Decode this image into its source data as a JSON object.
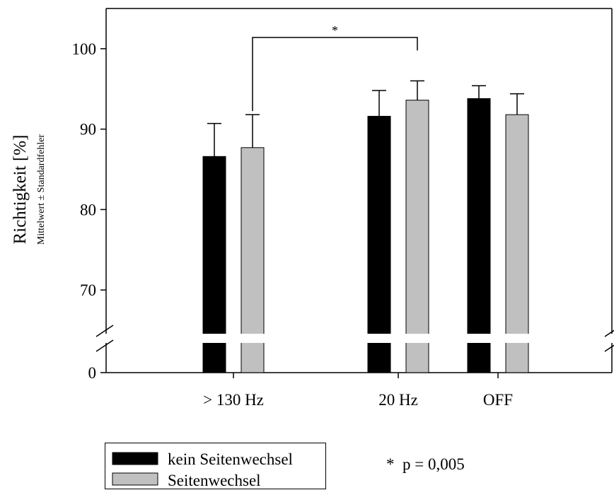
{
  "chart_data": {
    "type": "bar",
    "ylabel": "Richtigkeit [%]",
    "ylabel_sub": "Mittelwert ± Standardfehler",
    "categories": [
      "> 130 Hz",
      "20 Hz",
      "OFF"
    ],
    "y_ticks": [
      "100",
      "90",
      "80",
      "70",
      "0"
    ],
    "y_tick_values": [
      100,
      90,
      80,
      70,
      0
    ],
    "ylim_upper": [
      65,
      105
    ],
    "axis_break": true,
    "series": [
      {
        "name": "kein Seitenwechsel",
        "color": "#000000",
        "values": [
          86.6,
          91.6,
          93.8
        ],
        "errors": [
          4.1,
          3.2,
          1.6
        ]
      },
      {
        "name": "Seitenwechsel",
        "color": "#c0c0c0",
        "values": [
          87.7,
          93.6,
          91.8
        ],
        "errors": [
          4.1,
          2.4,
          2.6
        ]
      }
    ],
    "significance": {
      "from": "> 130 Hz / Seitenwechsel",
      "to": "20 Hz / Seitenwechsel",
      "marker": "*"
    },
    "annotation": "*  p = 0,005",
    "legend": "bottom-left"
  }
}
